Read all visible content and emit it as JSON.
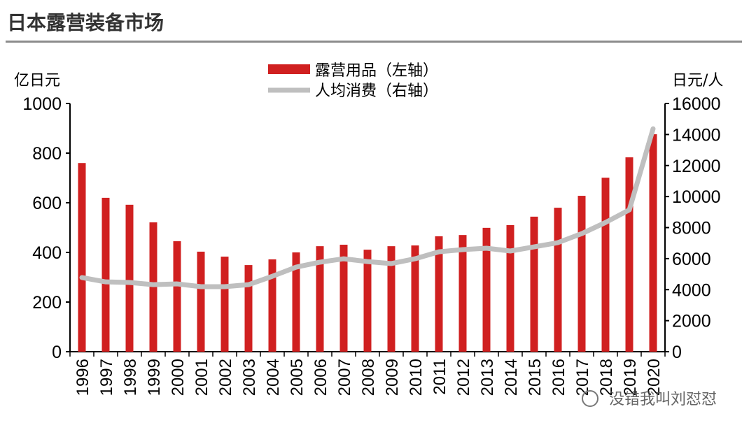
{
  "header": {
    "title": "日本露营装备市场"
  },
  "watermark": {
    "text": "没错我叫刘怼怼"
  },
  "colors": {
    "bar": "#d02020",
    "line": "#bfbfbf",
    "rule": "#8c8c8c"
  },
  "chart_data": {
    "type": "bar+line",
    "categories": [
      "1996",
      "1997",
      "1998",
      "1999",
      "2000",
      "2001",
      "2002",
      "2003",
      "2004",
      "2005",
      "2006",
      "2007",
      "2008",
      "2009",
      "2010",
      "2011",
      "2012",
      "2013",
      "2014",
      "2015",
      "2016",
      "2017",
      "2018",
      "2019",
      "2020"
    ],
    "series": [
      {
        "name": "露营用品（左轴）",
        "type": "bar",
        "axis": "left",
        "values": [
          760,
          620,
          592,
          521,
          445,
          403,
          383,
          349,
          372,
          400,
          425,
          431,
          411,
          425,
          428,
          465,
          470,
          499,
          510,
          544,
          580,
          628,
          701,
          783,
          876
        ]
      },
      {
        "name": "人均消费（右轴）",
        "type": "line",
        "axis": "right",
        "values": [
          4780,
          4500,
          4460,
          4320,
          4370,
          4190,
          4190,
          4320,
          4860,
          5450,
          5770,
          5990,
          5810,
          5680,
          5990,
          6440,
          6580,
          6670,
          6490,
          6760,
          7030,
          7610,
          8330,
          9140,
          14370
        ]
      }
    ],
    "ylabel_left": "亿日元",
    "ylabel_right": "日元/人",
    "ylim_left": [
      0,
      1000
    ],
    "ylim_right": [
      0,
      16000
    ],
    "yticks_left": [
      "0",
      "200",
      "400",
      "600",
      "800",
      "1000"
    ],
    "yticks_right": [
      "0",
      "2000",
      "4000",
      "6000",
      "8000",
      "10000",
      "12000",
      "14000",
      "16000"
    ],
    "grid": false,
    "legend": "top-center"
  }
}
